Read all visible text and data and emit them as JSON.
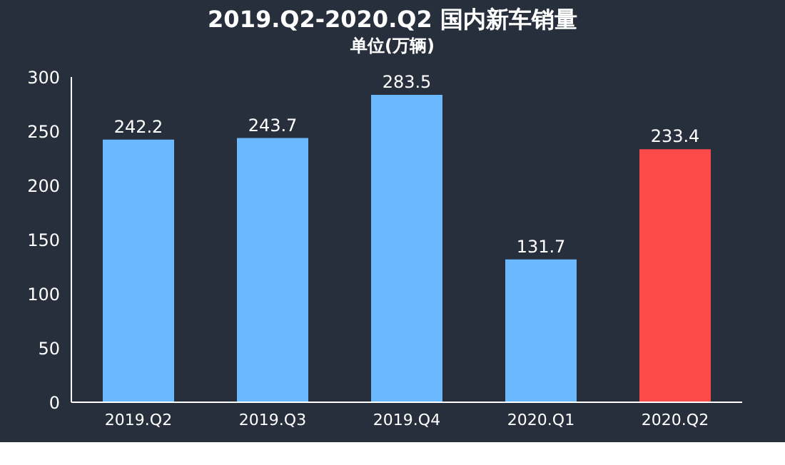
{
  "chart_data": {
    "type": "bar",
    "title": "2019.Q2-2020.Q2 国内新车销量",
    "subtitle": "单位(万辆)",
    "categories": [
      "2019.Q2",
      "2019.Q3",
      "2019.Q4",
      "2020.Q1",
      "2020.Q2"
    ],
    "values": [
      242.2,
      243.7,
      283.5,
      131.7,
      233.4
    ],
    "colors": [
      "#6bb8ff",
      "#6bb8ff",
      "#6bb8ff",
      "#6bb8ff",
      "#ff4a4a"
    ],
    "ylim": [
      0,
      300
    ],
    "yticks": [
      0,
      50,
      100,
      150,
      200,
      250,
      300
    ],
    "grid": false,
    "data_labels": true
  }
}
